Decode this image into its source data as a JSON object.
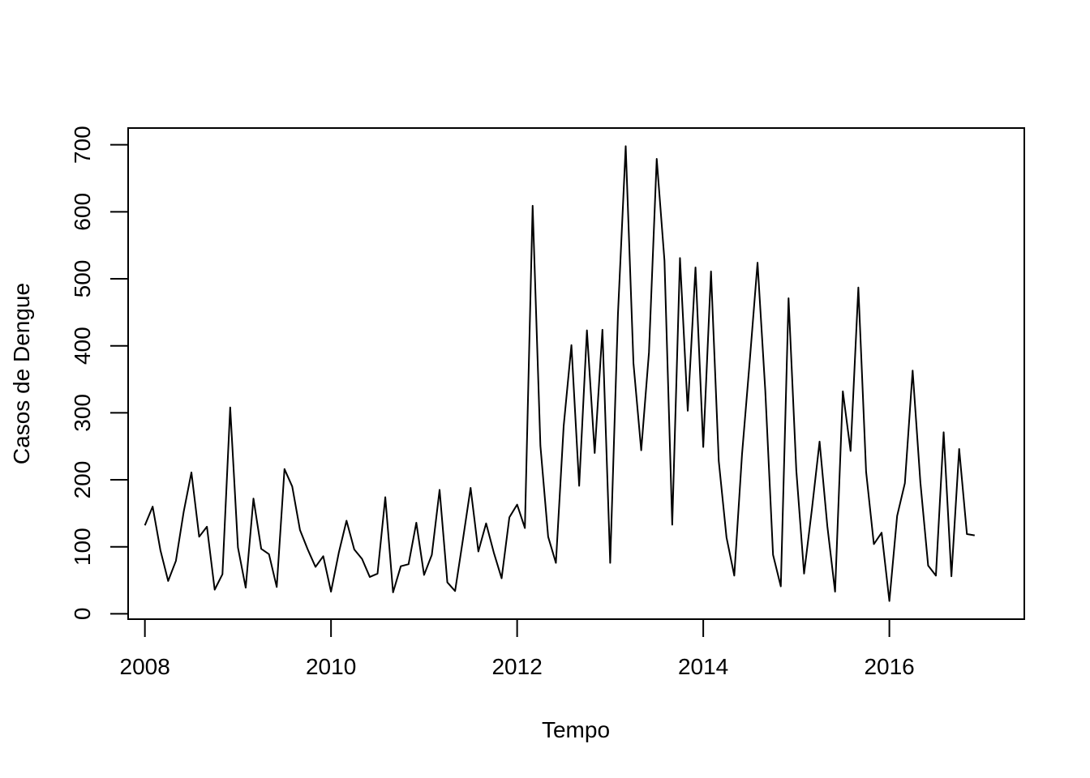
{
  "chart_data": {
    "type": "line",
    "title": "",
    "xlabel": "Tempo",
    "ylabel": "Casos de Dengue",
    "xlim": [
      2007.82,
      2017.45
    ],
    "ylim": [
      -8,
      725
    ],
    "xticks": [
      2008,
      2010,
      2012,
      2014,
      2016
    ],
    "yticks": [
      0,
      100,
      200,
      300,
      400,
      500,
      600,
      700
    ],
    "grid": false,
    "legend": "none",
    "line_color": "#000000",
    "start": 2008,
    "frequency": 12,
    "series": [
      {
        "values": [
          132,
          160,
          95,
          49,
          79,
          152,
          211,
          115,
          130,
          36,
          59,
          308,
          99,
          39,
          172,
          97,
          89,
          40,
          216,
          190,
          125,
          96,
          70,
          86,
          33,
          91,
          139,
          96,
          82,
          55,
          60,
          174,
          32,
          71,
          74,
          136,
          58,
          88,
          185,
          47,
          34,
          110,
          188,
          93,
          135,
          91,
          53,
          144,
          163,
          128,
          609,
          251,
          115,
          76,
          280,
          401,
          191,
          423,
          240,
          424,
          76,
          447,
          698,
          374,
          244,
          390,
          679,
          527,
          133,
          531,
          303,
          517,
          249,
          511,
          228,
          114,
          57,
          238,
          378,
          524,
          333,
          88,
          41,
          471,
          214,
          60,
          155,
          257,
          131,
          33,
          332,
          243,
          487,
          212,
          104,
          121,
          19,
          146,
          195,
          363,
          196,
          72,
          57,
          271,
          56,
          246,
          119,
          117
        ]
      }
    ]
  }
}
